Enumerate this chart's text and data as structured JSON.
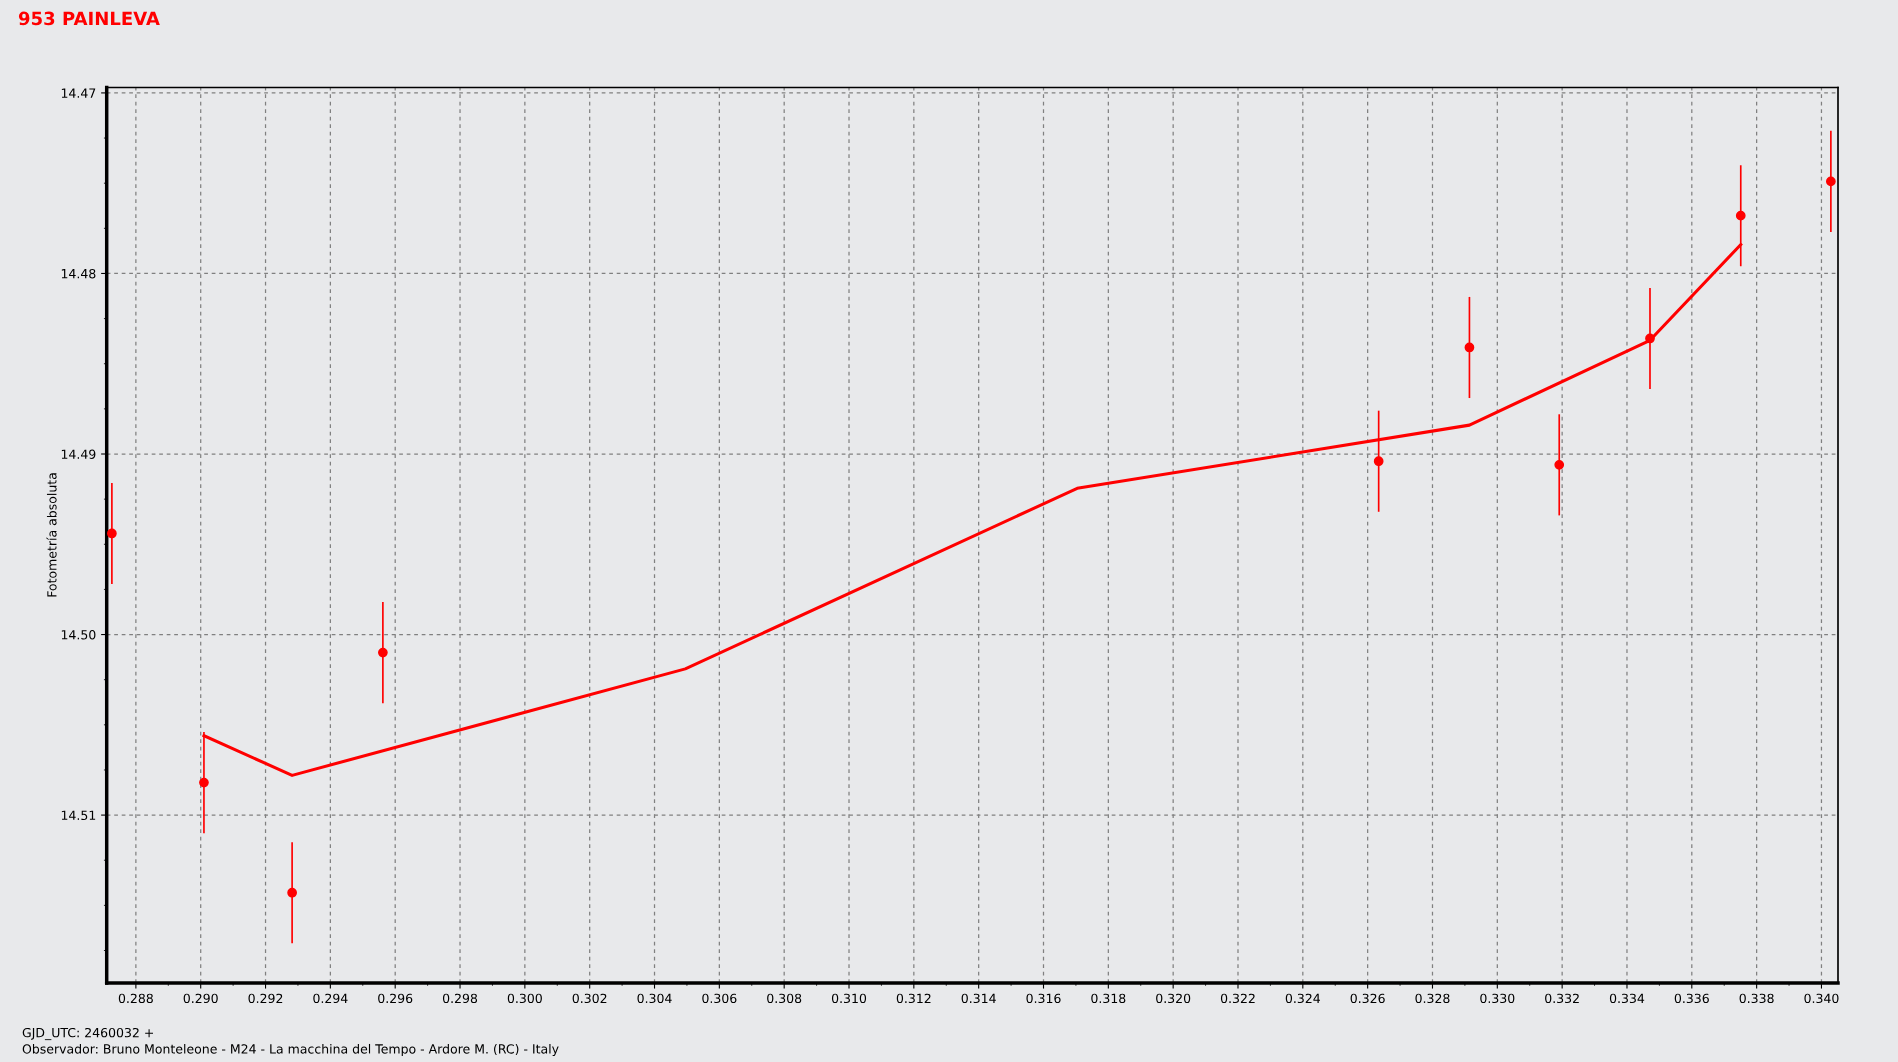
{
  "chart_data": {
    "type": "scatter",
    "title": "953 PAINLEVA",
    "xlabel": "GJD_UTC: 2460032 +",
    "ylabel": "Fotometría absoluta",
    "annotations": [
      "Observador: Bruno Monteleone - M24 - La macchina del Tempo - Ardore M. (RC) - Italy"
    ],
    "series": [
      {
        "color": "#ff0000",
        "marker": "circle",
        "x": [
          0.28726,
          0.2901,
          0.29282,
          0.29562,
          0.32634,
          0.32914,
          0.33191,
          0.33471,
          0.33751,
          0.34029
        ],
        "values": [
          14.4944,
          14.5082,
          14.5143,
          14.501,
          14.4904,
          14.4841,
          14.4906,
          14.4836,
          14.4768,
          14.4749
        ],
        "errors": [
          0.0028,
          0.0028,
          0.0028,
          0.0028,
          0.0028,
          0.0028,
          0.0028,
          0.0028,
          0.0028,
          0.0028
        ]
      },
      {
        "type": "line",
        "color": "#ff0000",
        "line_style": "solid",
        "x": [
          0.2901,
          0.29282,
          0.30495,
          0.31704,
          0.32914,
          0.33471,
          0.33751
        ],
        "values": [
          14.5056,
          14.5078,
          14.5019,
          14.4919,
          14.4884,
          14.4837,
          14.4784
        ]
      }
    ],
    "xlim": [
      0.2871,
      0.34051
    ],
    "ylim": [
      14.5193,
      14.4697
    ],
    "xticks": [
      {
        "value": 0.288,
        "label": "0.288"
      },
      {
        "value": 0.29,
        "label": "0.290"
      },
      {
        "value": 0.292,
        "label": "0.292"
      },
      {
        "value": 0.294,
        "label": "0.294"
      },
      {
        "value": 0.296,
        "label": "0.296"
      },
      {
        "value": 0.298,
        "label": "0.298"
      },
      {
        "value": 0.3,
        "label": "0.300"
      },
      {
        "value": 0.302,
        "label": "0.302"
      },
      {
        "value": 0.304,
        "label": "0.304"
      },
      {
        "value": 0.306,
        "label": "0.306"
      },
      {
        "value": 0.308,
        "label": "0.308"
      },
      {
        "value": 0.31,
        "label": "0.310"
      },
      {
        "value": 0.312,
        "label": "0.312"
      },
      {
        "value": 0.314,
        "label": "0.314"
      },
      {
        "value": 0.316,
        "label": "0.316"
      },
      {
        "value": 0.318,
        "label": "0.318"
      },
      {
        "value": 0.32,
        "label": "0.320"
      },
      {
        "value": 0.322,
        "label": "0.322"
      },
      {
        "value": 0.324,
        "label": "0.324"
      },
      {
        "value": 0.326,
        "label": "0.326"
      },
      {
        "value": 0.328,
        "label": "0.328"
      },
      {
        "value": 0.33,
        "label": "0.330"
      },
      {
        "value": 0.332,
        "label": "0.332"
      },
      {
        "value": 0.334,
        "label": "0.334"
      },
      {
        "value": 0.336,
        "label": "0.336"
      },
      {
        "value": 0.338,
        "label": "0.338"
      },
      {
        "value": 0.34,
        "label": "0.340"
      }
    ],
    "yticks": [
      {
        "value": 14.47,
        "label": "14.47"
      },
      {
        "value": 14.48,
        "label": "14.48"
      },
      {
        "value": 14.49,
        "label": "14.49"
      },
      {
        "value": 14.5,
        "label": "14.50"
      },
      {
        "value": 14.51,
        "label": "14.51"
      }
    ],
    "grid": true,
    "legend": false
  }
}
